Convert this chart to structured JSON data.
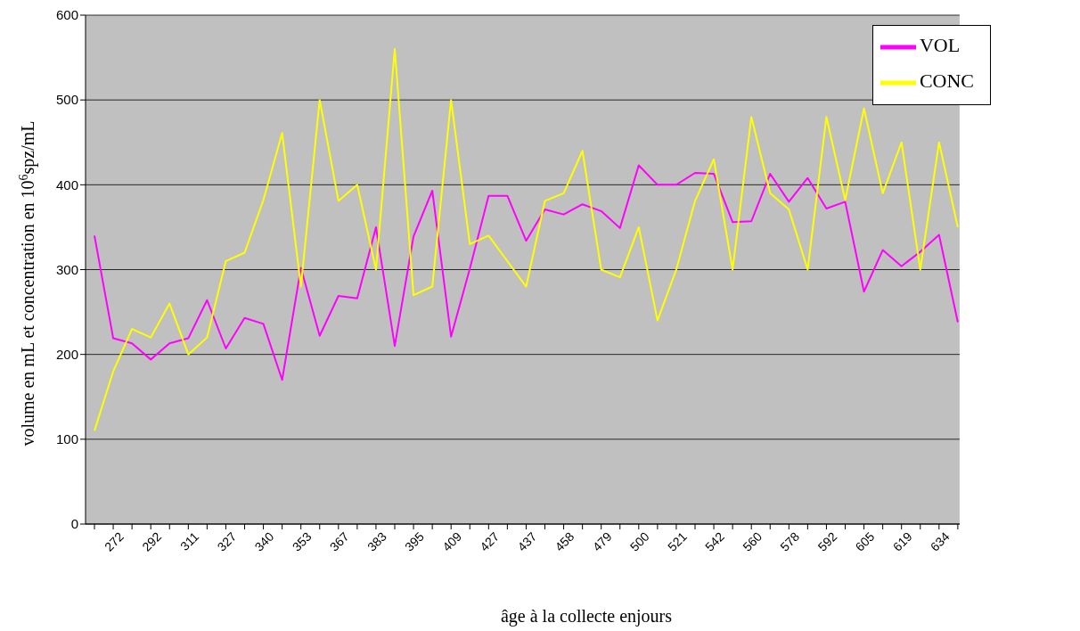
{
  "chart_data": {
    "type": "line",
    "xlabel": "âge à  la collecte enjours",
    "ylabel": "volume en mL et concentration en 10$^{6}$spz/mL",
    "categories": [
      null,
      "272",
      null,
      "292",
      null,
      "311",
      null,
      "327",
      null,
      "340",
      null,
      "353",
      null,
      "367",
      null,
      "383",
      null,
      "395",
      null,
      "409",
      null,
      "427",
      null,
      "437",
      null,
      "458",
      null,
      "479",
      null,
      "500",
      null,
      "521",
      null,
      "542",
      null,
      "560",
      null,
      "578",
      null,
      "592",
      null,
      "605",
      null,
      "619",
      null,
      "634",
      null
    ],
    "series": [
      {
        "name": "VOL",
        "color": "#ff00ff",
        "values": [
          340,
          219,
          213,
          194,
          213,
          219,
          264,
          207,
          243,
          236,
          170,
          302,
          222,
          269,
          266,
          350,
          210,
          339,
          393,
          221,
          301,
          387,
          387,
          334,
          371,
          365,
          377,
          369,
          349,
          423,
          400,
          400,
          414,
          413,
          356,
          357,
          413,
          380,
          408,
          372,
          380,
          274,
          323,
          304,
          321,
          341,
          238
        ]
      },
      {
        "name": "CONC",
        "color": "#ffff00",
        "values": [
          110,
          180,
          230,
          220,
          260,
          200,
          220,
          310,
          320,
          382,
          461,
          280,
          500,
          381,
          400,
          300,
          560,
          270,
          280,
          500,
          330,
          340,
          310,
          280,
          381,
          390,
          440,
          300,
          291,
          350,
          240,
          300,
          381,
          430,
          300,
          480,
          390,
          371,
          300,
          480,
          382,
          490,
          390,
          450,
          300,
          450,
          350
        ]
      }
    ],
    "ylim": [
      0,
      600
    ],
    "yticks": [
      0,
      100,
      200,
      300,
      400,
      500,
      600
    ],
    "grid": "y",
    "legend": "top right",
    "marker": "none",
    "line_style": "solid"
  }
}
